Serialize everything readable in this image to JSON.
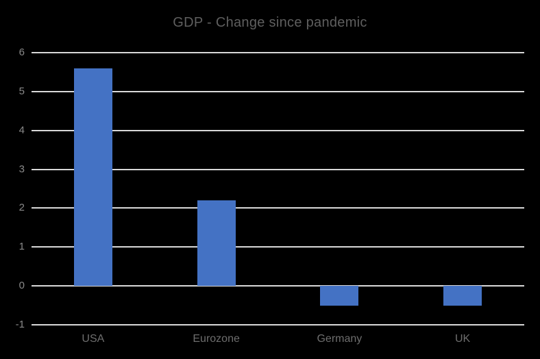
{
  "chart_data": {
    "type": "bar",
    "title": "GDP - Change since pandemic",
    "categories": [
      "USA",
      "Eurozone",
      "Germany",
      "UK"
    ],
    "values": [
      5.6,
      2.2,
      -0.5,
      -0.5
    ],
    "xlabel": "",
    "ylabel": "",
    "ylim": [
      -1,
      6
    ],
    "yticks": [
      6,
      5,
      4,
      3,
      2,
      1,
      0,
      -1
    ],
    "grid": true,
    "legend_position": "none",
    "colors": {
      "bar": "#4472C4",
      "gridline": "#D9D9D9",
      "title_text": "#5F5F5F",
      "y_tick_text": "#8A8A8A",
      "x_tick_text": "#6E6E6E",
      "background": "#000000"
    }
  }
}
